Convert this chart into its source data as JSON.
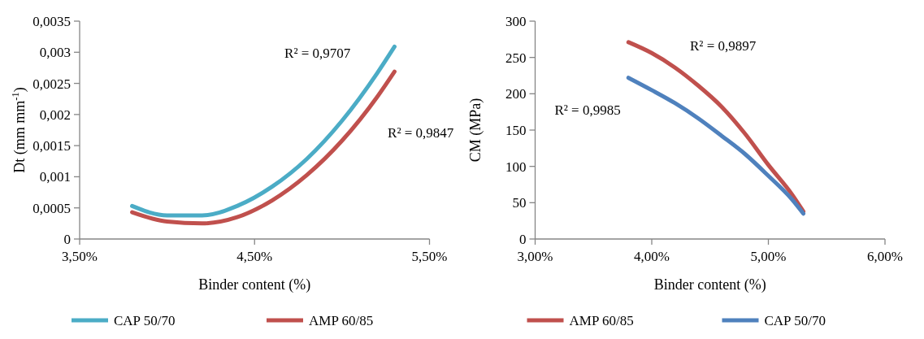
{
  "chart_data": [
    {
      "type": "line",
      "xlabel": "Binder content (%)",
      "ylabel": "Dt (mm mm$^{-1}$)",
      "xlim": [
        3.5,
        5.5
      ],
      "xticks": [
        {
          "value": 3.5,
          "label": "3,50%"
        },
        {
          "value": 4.5,
          "label": "4,50%"
        },
        {
          "value": 5.5,
          "label": "5,50%"
        }
      ],
      "ylim": [
        0,
        0.0035
      ],
      "yticks": [
        0,
        {
          "value": 0.0005,
          "label": "0,0005"
        },
        {
          "value": 0.001,
          "label": "0,001"
        },
        {
          "value": 0.0015,
          "label": "0,0015"
        },
        {
          "value": 0.002,
          "label": "0,002"
        },
        {
          "value": 0.0025,
          "label": "0,0025"
        },
        {
          "value": 0.003,
          "label": "0,003"
        },
        {
          "value": 0.0035,
          "label": "0,0035"
        }
      ],
      "grid": false,
      "legend": "bottom",
      "marker": "none",
      "x": [
        3.8,
        4.0,
        4.2,
        4.4,
        4.6,
        4.8,
        5.0,
        5.2,
        5.3
      ],
      "series": [
        {
          "name": "CAP 50/70",
          "color": "#4bacc6",
          "values": [
            0.00053,
            0.00038,
            0.00038,
            0.00053,
            0.00084,
            0.00129,
            0.0019,
            0.00266,
            0.00309
          ]
        },
        {
          "name": "AMP 60/85",
          "color": "#c0504d",
          "values": [
            0.00043,
            0.00028,
            0.00025,
            0.00035,
            0.00062,
            0.00103,
            0.00158,
            0.00228,
            0.00269
          ]
        }
      ],
      "annotations": [
        "R² = 0,9707",
        "R² = 0,9847"
      ]
    },
    {
      "type": "line",
      "xlabel": "Binder content (%)",
      "ylabel": "CM (MPa)",
      "xlim": [
        3,
        6
      ],
      "xticks": [
        {
          "value": 3,
          "label": "3,00%"
        },
        {
          "value": 4,
          "label": "4,00%"
        },
        {
          "value": 5,
          "label": "5,00%"
        },
        {
          "value": 6,
          "label": "6,00%"
        }
      ],
      "ylim": [
        0,
        300
      ],
      "yticks": [
        0,
        50,
        100,
        150,
        200,
        250,
        300
      ],
      "grid": false,
      "legend": "bottom",
      "marker": "none",
      "x": [
        3.8,
        4.0,
        4.2,
        4.4,
        4.6,
        4.8,
        5.0,
        5.2,
        5.3
      ],
      "series": [
        {
          "name": "AMP 60/85",
          "color": "#c0504d",
          "values": [
            271,
            256,
            236,
            211,
            182,
            145,
            102,
            62,
            38
          ]
        },
        {
          "name": "CAP 50/70",
          "color": "#4f81bd",
          "values": [
            222,
            205,
            187,
            166,
            142,
            117,
            87,
            55,
            35
          ]
        }
      ],
      "annotations": [
        "R² = 0,9897",
        "R² = 0,9985"
      ]
    }
  ]
}
